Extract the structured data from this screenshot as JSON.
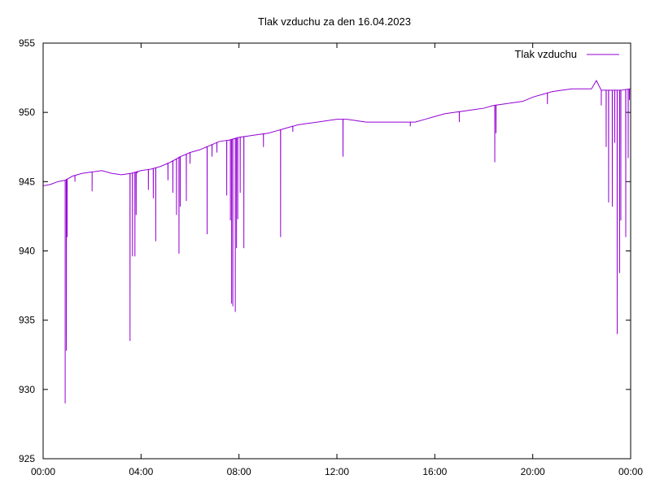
{
  "chart_data": {
    "type": "line",
    "title": "Tlak vzduchu za den 16.04.2023",
    "xlabel": "",
    "ylabel": "",
    "x_unit": "hours",
    "xlim": [
      0,
      24
    ],
    "ylim": [
      925,
      955
    ],
    "x_ticks": [
      {
        "value": 0,
        "label": "00:00"
      },
      {
        "value": 4,
        "label": "04:00"
      },
      {
        "value": 8,
        "label": "08:00"
      },
      {
        "value": 12,
        "label": "12:00"
      },
      {
        "value": 16,
        "label": "16:00"
      },
      {
        "value": 20,
        "label": "20:00"
      },
      {
        "value": 24,
        "label": "00:00"
      }
    ],
    "y_ticks": [
      {
        "value": 925,
        "label": "925"
      },
      {
        "value": 930,
        "label": "930"
      },
      {
        "value": 935,
        "label": "935"
      },
      {
        "value": 940,
        "label": "940"
      },
      {
        "value": 945,
        "label": "945"
      },
      {
        "value": 950,
        "label": "950"
      },
      {
        "value": 955,
        "label": "955"
      }
    ],
    "grid": false,
    "legend_position": "top-right",
    "series": [
      {
        "name": "Tlak vzduchu",
        "color": "#9400D3",
        "baseline": [
          [
            0.0,
            944.7
          ],
          [
            0.3,
            944.8
          ],
          [
            0.6,
            945.0
          ],
          [
            0.9,
            945.1
          ],
          [
            1.2,
            945.4
          ],
          [
            1.6,
            945.6
          ],
          [
            2.0,
            945.7
          ],
          [
            2.4,
            945.8
          ],
          [
            2.8,
            945.6
          ],
          [
            3.2,
            945.5
          ],
          [
            3.6,
            945.6
          ],
          [
            4.0,
            945.8
          ],
          [
            4.4,
            945.9
          ],
          [
            4.8,
            946.1
          ],
          [
            5.2,
            946.4
          ],
          [
            5.6,
            946.8
          ],
          [
            6.0,
            947.1
          ],
          [
            6.4,
            947.3
          ],
          [
            6.8,
            947.6
          ],
          [
            7.2,
            947.9
          ],
          [
            7.6,
            948.0
          ],
          [
            8.0,
            948.2
          ],
          [
            8.4,
            948.3
          ],
          [
            8.8,
            948.4
          ],
          [
            9.2,
            948.5
          ],
          [
            9.6,
            948.7
          ],
          [
            10.0,
            948.9
          ],
          [
            10.4,
            949.1
          ],
          [
            10.8,
            949.2
          ],
          [
            11.2,
            949.3
          ],
          [
            11.6,
            949.4
          ],
          [
            12.0,
            949.5
          ],
          [
            12.4,
            949.5
          ],
          [
            12.8,
            949.4
          ],
          [
            13.2,
            949.3
          ],
          [
            13.6,
            949.3
          ],
          [
            14.0,
            949.3
          ],
          [
            14.4,
            949.3
          ],
          [
            14.8,
            949.3
          ],
          [
            15.2,
            949.3
          ],
          [
            15.6,
            949.5
          ],
          [
            16.0,
            949.7
          ],
          [
            16.4,
            949.9
          ],
          [
            16.8,
            950.0
          ],
          [
            17.2,
            950.1
          ],
          [
            17.6,
            950.2
          ],
          [
            18.0,
            950.3
          ],
          [
            18.4,
            950.5
          ],
          [
            18.8,
            950.6
          ],
          [
            19.2,
            950.7
          ],
          [
            19.6,
            950.8
          ],
          [
            20.0,
            951.1
          ],
          [
            20.4,
            951.3
          ],
          [
            20.8,
            951.5
          ],
          [
            21.2,
            951.6
          ],
          [
            21.6,
            951.7
          ],
          [
            22.0,
            951.7
          ],
          [
            22.4,
            951.7
          ],
          [
            22.6,
            952.3
          ],
          [
            22.8,
            951.6
          ],
          [
            23.2,
            951.6
          ],
          [
            23.6,
            951.6
          ],
          [
            24.0,
            951.7
          ]
        ],
        "dips": [
          [
            0.9,
            929.0
          ],
          [
            0.95,
            932.8
          ],
          [
            0.98,
            941.0
          ],
          [
            1.3,
            945.0
          ],
          [
            2.0,
            944.3
          ],
          [
            3.55,
            933.5
          ],
          [
            3.65,
            939.6
          ],
          [
            3.75,
            939.6
          ],
          [
            3.8,
            942.6
          ],
          [
            3.85,
            945.6
          ],
          [
            4.3,
            944.4
          ],
          [
            4.5,
            943.8
          ],
          [
            4.6,
            940.7
          ],
          [
            5.1,
            945.1
          ],
          [
            5.3,
            944.2
          ],
          [
            5.45,
            942.6
          ],
          [
            5.55,
            939.8
          ],
          [
            5.6,
            943.2
          ],
          [
            5.85,
            943.6
          ],
          [
            6.0,
            946.3
          ],
          [
            6.7,
            941.2
          ],
          [
            6.9,
            946.8
          ],
          [
            7.1,
            947.1
          ],
          [
            7.5,
            944.0
          ],
          [
            7.65,
            942.2
          ],
          [
            7.7,
            936.2
          ],
          [
            7.75,
            936.0
          ],
          [
            7.85,
            935.6
          ],
          [
            7.9,
            940.2
          ],
          [
            7.95,
            942.3
          ],
          [
            8.05,
            944.2
          ],
          [
            8.2,
            940.2
          ],
          [
            9.0,
            947.5
          ],
          [
            9.7,
            941.0
          ],
          [
            10.2,
            948.6
          ],
          [
            12.25,
            946.8
          ],
          [
            15.0,
            949.0
          ],
          [
            17.0,
            949.3
          ],
          [
            18.45,
            946.4
          ],
          [
            18.5,
            948.5
          ],
          [
            20.6,
            950.6
          ],
          [
            22.8,
            950.5
          ],
          [
            23.0,
            947.5
          ],
          [
            23.1,
            943.5
          ],
          [
            23.25,
            943.2
          ],
          [
            23.35,
            947.8
          ],
          [
            23.45,
            934.0
          ],
          [
            23.55,
            938.4
          ],
          [
            23.6,
            942.2
          ],
          [
            23.8,
            941.0
          ],
          [
            23.9,
            946.7
          ],
          [
            23.95,
            950.9
          ]
        ]
      }
    ]
  }
}
